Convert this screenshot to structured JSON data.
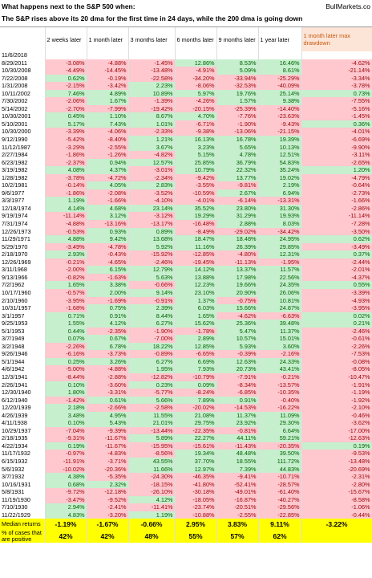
{
  "header": {
    "title": "What happens next to the S&P 500 when:",
    "source": "BullMarkets.co",
    "subtitle": "The S&P rises above its 20 dma for the first time in 24 days, while the 200 dma is going down"
  },
  "table": {
    "columns": [
      "2 weeks later",
      "1 month later",
      "3 months later",
      "6 months later",
      "9 months later",
      "1 year later",
      "1 month later max drawdown"
    ],
    "rows": [
      [
        "11/6/2018"
      ],
      [
        "8/29/2011",
        "-3.08%",
        "-4.88%",
        "-1.45%",
        "12.86%",
        "8.53%",
        "16.46%",
        "-4.62%"
      ],
      [
        "10/30/2008",
        "-4.49%",
        "-14.45%",
        "-13.48%",
        "-4.91%",
        "5.09%",
        "8.61%",
        "-21.14%"
      ],
      [
        "7/22/2008",
        "0.62%",
        "-0.19%",
        "-22.58%",
        "-34.20%",
        "-33.94%",
        "-25.29%",
        "-3.34%"
      ],
      [
        "1/31/2008",
        "-2.15%",
        "-3.42%",
        "2.23%",
        "-8.06%",
        "-32.53%",
        "-40.09%",
        "-3.78%"
      ],
      [
        "10/11/2002",
        "7.46%",
        "4.89%",
        "10.89%",
        "5.97%",
        "19.76%",
        "25.14%",
        "0.73%"
      ],
      [
        "7/30/2002",
        "-2.06%",
        "1.67%",
        "-1.39%",
        "-4.26%",
        "1.57%",
        "9.38%",
        "-7.55%"
      ],
      [
        "5/14/2002",
        "-2.70%",
        "-7.99%",
        "-19.42%",
        "-20.15%",
        "-25.39%",
        "-14.40%",
        "-5.16%"
      ],
      [
        "10/30/2001",
        "0.45%",
        "1.10%",
        "8.67%",
        "4.70%",
        "-7.76%",
        "-23.63%",
        "-1.45%"
      ],
      [
        "5/10/2001",
        "5.17%",
        "7.43%",
        "1.01%",
        "-6.71%",
        "-1.90%",
        "-9.43%",
        "0.36%"
      ],
      [
        "10/30/2000",
        "-3.39%",
        "-4.06%",
        "-2.33%",
        "-9.38%",
        "-13.06%",
        "-21.15%",
        "-4.01%"
      ],
      [
        "9/12/1990",
        "-5.42%",
        "-8.40%",
        "1.21%",
        "16.13%",
        "16.78%",
        "19.39%",
        "-6.69%"
      ],
      [
        "11/12/1987",
        "-3.29%",
        "-2.55%",
        "3.67%",
        "3.23%",
        "5.65%",
        "10.13%",
        "-9.90%"
      ],
      [
        "2/27/1984",
        "-1.86%",
        "-1.26%",
        "-4.82%",
        "5.15%",
        "4.78%",
        "12.51%",
        "-3.11%"
      ],
      [
        "6/23/1982",
        "-2.37%",
        "0.94%",
        "12.57%",
        "25.85%",
        "36.79%",
        "54.83%",
        "-2.65%"
      ],
      [
        "3/19/1982",
        "4.08%",
        "4.37%",
        "-3.01%",
        "10.79%",
        "22.32%",
        "35.24%",
        "1.20%"
      ],
      [
        "1/28/1982",
        "-3.78%",
        "-4.72%",
        "-2.34%",
        "-9.42%",
        "13.77%",
        "19.02%",
        "-4.79%"
      ],
      [
        "10/2/1981",
        "-0.14%",
        "4.05%",
        "2.83%",
        "-3.55%",
        "-9.81%",
        "2.19%",
        "-0.64%"
      ],
      [
        "9/6/1977",
        "-1.86%",
        "-2.08%",
        "-3.52%",
        "-10.59%",
        "2.67%",
        "6.94%",
        "-2.73%"
      ],
      [
        "3/3/1977",
        "1.19%",
        "-1.66%",
        "-4.10%",
        "-4.01%",
        "-6.14%",
        "-13.31%",
        "-1.66%"
      ],
      [
        "12/18/1974",
        "4.14%",
        "4.68%",
        "23.14%",
        "35.52%",
        "23.80%",
        "31.30%",
        "-2.86%"
      ],
      [
        "9/19/1974",
        "-11.14%",
        "3.12%",
        "-3.12%",
        "19.29%",
        "31.29%",
        "19.93%",
        "-11.14%"
      ],
      [
        "7/31/1974",
        "-4.88%",
        "-13.16%",
        "-13.17%",
        "-16.48%",
        "2.88%",
        "8.03%",
        "-7.28%"
      ],
      [
        "12/26/1973",
        "-0.53%",
        "0.93%",
        "0.89%",
        "-8.49%",
        "-29.02%",
        "-34.42%",
        "-3.50%"
      ],
      [
        "11/29/1971",
        "4.88%",
        "9.42%",
        "13.68%",
        "18.47%",
        "18.48%",
        "24.95%",
        "0.62%"
      ],
      [
        "5/29/1970",
        "-3.49%",
        "-4.78%",
        "5.92%",
        "11.16%",
        "26.39%",
        "29.85%",
        "-3.49%"
      ],
      [
        "2/18/1970",
        "2.93%",
        "-0.43%",
        "-15.92%",
        "-12.85%",
        "-4.80%",
        "12.31%",
        "0.37%"
      ],
      [
        "12/26/1969",
        "-0.21%",
        "-4.65%",
        "-2.46%",
        "-19.45%",
        "-11.13%",
        "-1.95%",
        "-2.44%"
      ],
      [
        "3/11/1968",
        "-2.00%",
        "6.15%",
        "12.79%",
        "14.12%",
        "13.37%",
        "11.57%",
        "-2.01%"
      ],
      [
        "9/13/1966",
        "-0.82%",
        "-1.63%",
        "5.63%",
        "13.88%",
        "17.98%",
        "22.56%",
        "-4.37%"
      ],
      [
        "7/2/1962",
        "1.65%",
        "3.38%",
        "-0.66%",
        "12.23%",
        "19.66%",
        "24.35%",
        "0.55%"
      ],
      [
        "10/17/1960",
        "-0.57%",
        "2.00%",
        "9.14%",
        "23.10%",
        "20.90%",
        "26.06%",
        "-3.39%"
      ],
      [
        "2/10/1960",
        "-3.95%",
        "-1.69%",
        "-0.91%",
        "1.37%",
        "-0.75%",
        "10.81%",
        "-4.93%"
      ],
      [
        "10/31/1957",
        "-1.68%",
        "0.75%",
        "2.39%",
        "6.03%",
        "15.66%",
        "24.87%",
        "-3.95%"
      ],
      [
        "3/1/1957",
        "0.71%",
        "0.91%",
        "8.44%",
        "1.65%",
        "-4.62%",
        "-6.63%",
        "0.02%"
      ],
      [
        "9/25/1953",
        "1.55%",
        "4.12%",
        "6.27%",
        "15.62%",
        "25.36%",
        "39.48%",
        "0.21%"
      ],
      [
        "5/1/1953",
        "0.44%",
        "-2.35%",
        "-1.90%",
        "-1.78%",
        "5.47%",
        "11.37%",
        "-2.46%"
      ],
      [
        "3/7/1949",
        "0.07%",
        "0.67%",
        "-7.00%",
        "2.89%",
        "10.57%",
        "15.01%",
        "-0.61%"
      ],
      [
        "3/2/1948",
        "-2.26%",
        "6.78%",
        "18.22%",
        "12.85%",
        "5.93%",
        "3.60%",
        "-2.26%"
      ],
      [
        "9/26/1946",
        "-6.16%",
        "-3.73%",
        "-0.89%",
        "-6.65%",
        "-0.39%",
        "-2.16%",
        "-7.53%"
      ],
      [
        "5/1/1944",
        "0.25%",
        "3.26%",
        "6.27%",
        "6.69%",
        "12.63%",
        "24.33%",
        "-0.08%"
      ],
      [
        "4/6/1942",
        "-5.00%",
        "-4.88%",
        "1.95%",
        "7.93%",
        "20.73%",
        "43.41%",
        "-8.05%"
      ],
      [
        "12/3/1941",
        "-8.44%",
        "-2.88%",
        "-12.82%",
        "-10.79%",
        "-7.91%",
        "-0.21%",
        "-10.47%"
      ],
      [
        "2/26/1941",
        "0.10%",
        "-3.60%",
        "0.23%",
        "0.09%",
        "-8.34%",
        "-13.57%",
        "-1.91%"
      ],
      [
        "12/30/1940",
        "1.80%",
        "-3.31%",
        "-5.77%",
        "-8.24%",
        "-6.85%",
        "-10.35%",
        "-1.19%"
      ],
      [
        "6/12/1940",
        "-1.42%",
        "0.61%",
        "5.66%",
        "7.89%",
        "0.91%",
        "-0.40%",
        "-1.92%"
      ],
      [
        "12/20/1939",
        "2.18%",
        "-2.66%",
        "-2.58%",
        "-20.02%",
        "-14.53%",
        "-16.22%",
        "-2.10%"
      ],
      [
        "4/26/1939",
        "3.48%",
        "4.95%",
        "11.55%",
        "21.08%",
        "11.37%",
        "11.09%",
        "-0.46%"
      ],
      [
        "4/11/1938",
        "0.10%",
        "5.43%",
        "21.01%",
        "29.75%",
        "23.92%",
        "29.30%",
        "-3.62%"
      ],
      [
        "10/29/1937",
        "-7.04%",
        "-9.39%",
        "-13.44%",
        "-22.35%",
        "-0.81%",
        "6.64%",
        "-17.00%"
      ],
      [
        "2/18/1935",
        "-9.31%",
        "-11.67%",
        "5.89%",
        "22.27%",
        "44.11%",
        "59.21%",
        "-12.63%"
      ],
      [
        "4/22/1934",
        "0.19%",
        "-11.67%",
        "-15.95%",
        "-15.61%",
        "-11.43%",
        "-20.35%",
        "0.19%"
      ],
      [
        "11/17/1932",
        "-0.97%",
        "-4.83%",
        "-8.56%",
        "19.34%",
        "48.48%",
        "39.50%",
        "-9.53%"
      ],
      [
        "6/15/1932",
        "-11.91%",
        "-3.71%",
        "43.55%",
        "37.70%",
        "18.55%",
        "111.72%",
        "-13.48%"
      ],
      [
        "5/6/1932",
        "-10.02%",
        "-20.36%",
        "11.66%",
        "12.97%",
        "7.39%",
        "44.83%",
        "-20.69%"
      ],
      [
        "3/7/1932",
        "4.38%",
        "-5.35%",
        "-24.30%",
        "-46.35%",
        "-9.41%",
        "-10.71%",
        "-2.31%"
      ],
      [
        "10/16/1931",
        "0.68%",
        "2.32%",
        "-18.15%",
        "-41.80%",
        "-52.41%",
        "-28.57%",
        "-2.80%"
      ],
      [
        "5/8/1931",
        "-9.72%",
        "-12.18%",
        "-26.10%",
        "-30.18%",
        "-49.01%",
        "-61.40%",
        "-15.67%"
      ],
      [
        "11/19/1930",
        "-3.47%",
        "-9.52%",
        "4.12%",
        "-18.05%",
        "-16.87%",
        "-40.27%",
        "-8.58%"
      ],
      [
        "7/10/1930",
        "2.94%",
        "-2.41%",
        "-11.41%",
        "-23.74%",
        "-20.51%",
        "-29.56%",
        "-1.06%"
      ],
      [
        "11/22/1929",
        "4.83%",
        "-3.20%",
        "1.19%",
        "-10.88%",
        "-2.55%",
        "-22.85%",
        "-0.44%"
      ]
    ],
    "footer": [
      {
        "label": "Median returns",
        "values": [
          "-1.19%",
          "-1.67%",
          "-0.66%",
          "2.95%",
          "3.83%",
          "9.11%",
          "-3.22%"
        ]
      },
      {
        "label": "% of cases that are positive",
        "values": [
          "42%",
          "42%",
          "48%",
          "55%",
          "57%",
          "62%"
        ]
      }
    ]
  }
}
